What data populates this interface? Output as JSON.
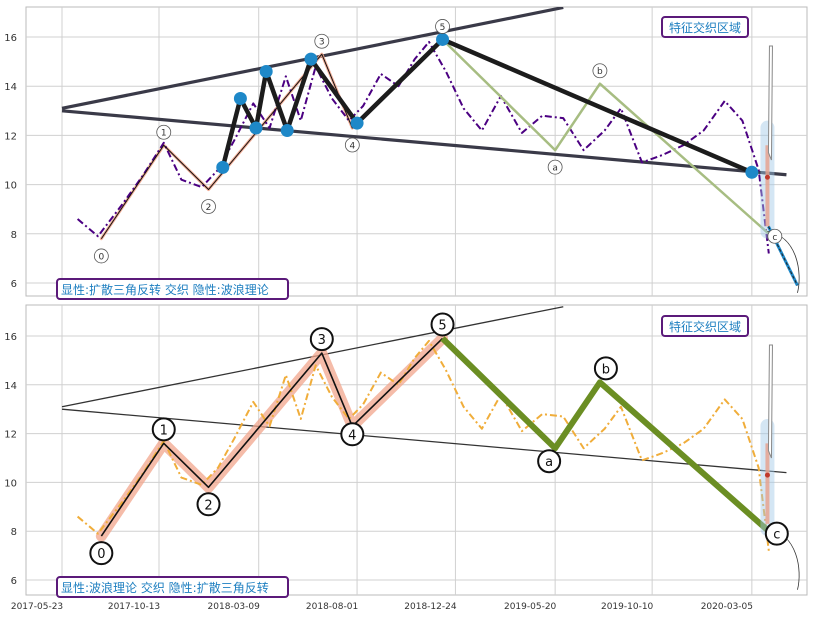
{
  "chart_data": [
    {
      "type": "line",
      "panel": "top",
      "series": [
        {
          "name": "",
          "color": "#4b0082",
          "style": "dash-dot",
          "x": [
            "2017-06-15",
            "2017-07-15",
            "2017-08-20",
            "2017-09-20",
            "2017-10-20",
            "2017-11-15",
            "2017-12-15",
            "2018-01-08",
            "2018-02-01",
            "2018-03-01",
            "2018-03-25",
            "2018-04-18",
            "2018-05-10",
            "2018-06-01",
            "2018-06-25",
            "2018-07-20",
            "2018-08-10",
            "2018-09-05",
            "2018-10-01",
            "2018-10-25",
            "2018-11-15",
            "2018-12-10",
            "2019-01-05",
            "2019-02-01",
            "2019-03-01",
            "2019-04-01",
            "2019-05-01",
            "2019-06-01",
            "2019-07-01",
            "2019-08-01",
            "2019-08-25",
            "2019-09-25",
            "2019-10-25",
            "2019-11-25",
            "2019-12-25",
            "2020-01-25",
            "2020-02-20",
            "2020-03-15",
            "2020-03-30"
          ],
          "y": [
            8.6,
            7.9,
            9.2,
            10.4,
            11.7,
            10.2,
            9.9,
            10.6,
            11.8,
            13.3,
            12.3,
            14.4,
            12.6,
            14.8,
            13.5,
            12.6,
            13.2,
            14.5,
            14.0,
            15.1,
            15.8,
            14.6,
            13.1,
            12.2,
            13.6,
            12.1,
            12.8,
            12.7,
            11.4,
            12.2,
            13.1,
            10.9,
            11.2,
            11.6,
            12.2,
            13.4,
            12.6,
            10.6,
            7.2
          ]
        }
      ],
      "wave_points": {
        "labels": [
          "0",
          "1",
          "2",
          "3",
          "4",
          "5",
          "a",
          "b",
          "c"
        ],
        "x": [
          "2017-07-20",
          "2017-10-20",
          "2017-12-25",
          "2018-06-10",
          "2018-07-25",
          "2018-12-05",
          "2019-05-20",
          "2019-07-25",
          "2020-03-30"
        ],
        "y": [
          7.8,
          11.6,
          9.8,
          15.3,
          12.3,
          15.9,
          11.4,
          14.1,
          8.0
        ]
      },
      "triangle_pattern_points": {
        "x": [
          "2018-01-15",
          "2018-02-10",
          "2018-03-05",
          "2018-03-20",
          "2018-04-20",
          "2018-05-25",
          "2018-08-01",
          "2018-12-05",
          "2020-03-05"
        ],
        "y": [
          10.7,
          13.5,
          12.3,
          14.6,
          12.2,
          15.1,
          12.5,
          15.9,
          10.5
        ]
      },
      "trend_lines": [
        {
          "x": [
            "2017-05-23",
            "2019-06-01"
          ],
          "y": [
            13.1,
            17.2
          ]
        },
        {
          "x": [
            "2017-05-23",
            "2020-04-25"
          ],
          "y": [
            13.0,
            10.4
          ]
        }
      ],
      "ylim": [
        5.5,
        17.3
      ],
      "y_ticks": [
        "6",
        "8",
        "10",
        "12",
        "14",
        "16"
      ],
      "label_zone": "特征交织区域",
      "label_caption": "显性:扩散三角反转 交织 隐性:波浪理论",
      "grid": true
    },
    {
      "type": "line",
      "panel": "bottom",
      "series": [
        {
          "name": "",
          "color": "#f0ad3a",
          "style": "dash-dot",
          "x": [
            "2017-06-15",
            "2017-07-15",
            "2017-08-20",
            "2017-09-20",
            "2017-10-20",
            "2017-11-15",
            "2017-12-15",
            "2018-01-08",
            "2018-02-01",
            "2018-03-01",
            "2018-03-25",
            "2018-04-18",
            "2018-05-10",
            "2018-06-01",
            "2018-06-25",
            "2018-07-20",
            "2018-08-10",
            "2018-09-05",
            "2018-10-01",
            "2018-10-25",
            "2018-11-15",
            "2018-12-10",
            "2019-01-05",
            "2019-02-01",
            "2019-03-01",
            "2019-04-01",
            "2019-05-01",
            "2019-06-01",
            "2019-07-01",
            "2019-08-01",
            "2019-08-25",
            "2019-09-25",
            "2019-10-25",
            "2019-11-25",
            "2019-12-25",
            "2020-01-25",
            "2020-02-20",
            "2020-03-15",
            "2020-03-30"
          ],
          "y": [
            8.6,
            7.9,
            9.2,
            10.4,
            11.7,
            10.2,
            9.9,
            10.6,
            11.8,
            13.3,
            12.3,
            14.4,
            12.6,
            14.8,
            13.5,
            12.6,
            13.2,
            14.5,
            14.0,
            15.1,
            15.8,
            14.6,
            13.1,
            12.2,
            13.6,
            12.1,
            12.8,
            12.7,
            11.4,
            12.2,
            13.1,
            10.9,
            11.2,
            11.6,
            12.2,
            13.4,
            12.6,
            10.6,
            7.2
          ]
        }
      ],
      "wave_points": {
        "labels": [
          "0",
          "1",
          "2",
          "3",
          "4",
          "5",
          "a",
          "b",
          "c"
        ],
        "x": [
          "2017-07-20",
          "2017-10-20",
          "2017-12-25",
          "2018-06-10",
          "2018-07-25",
          "2018-12-05",
          "2019-05-20",
          "2019-07-25",
          "2020-03-30"
        ],
        "y": [
          7.8,
          11.6,
          9.8,
          15.3,
          12.3,
          15.9,
          11.4,
          14.1,
          8.0
        ]
      },
      "trend_lines": [
        {
          "x": [
            "2017-05-23",
            "2019-06-01"
          ],
          "y": [
            13.1,
            17.2
          ]
        },
        {
          "x": [
            "2017-05-23",
            "2020-04-25"
          ],
          "y": [
            13.0,
            10.4
          ]
        }
      ],
      "ylim": [
        5.5,
        17.3
      ],
      "y_ticks": [
        "6",
        "8",
        "10",
        "12",
        "14",
        "16"
      ],
      "label_zone": "特征交织区域",
      "label_caption": "显性:波浪理论 交织 隐性:扩散三角反转",
      "x_ticks": [
        "2017-05-23",
        "2017-10-13",
        "2018-03-09",
        "2018-08-01",
        "2018-12-24",
        "2019-05-20",
        "2019-10-10",
        "2020-03-05"
      ],
      "xlim": [
        "2017-05-23",
        "2020-08-01"
      ],
      "grid": true
    }
  ],
  "colors": {
    "wave_line": "#111111",
    "wave_band": "#f2a58c",
    "triangle_point": "#1e88c8",
    "triangle_line": "#1c1c1c",
    "bottom_abc": "#6b8e23",
    "top_abc": "#a7bd82",
    "label_text": "#1e7fc0",
    "label_border": "#5b1a7a",
    "trend_line": "#3a3a48"
  }
}
